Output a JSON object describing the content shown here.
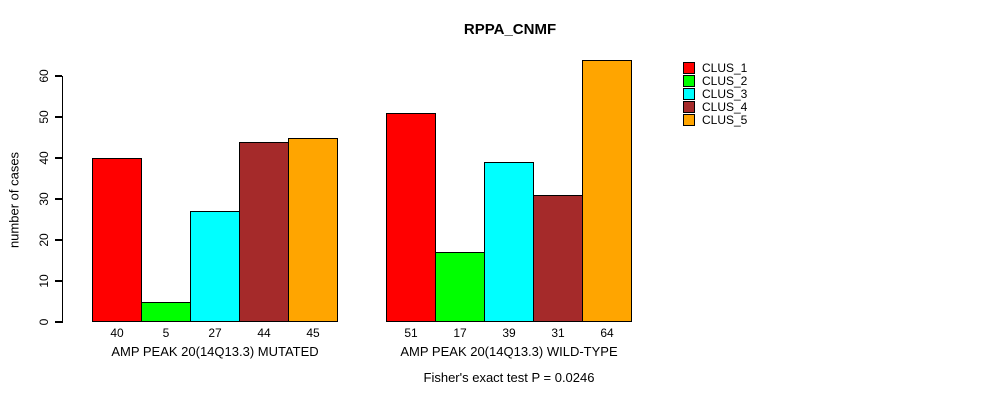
{
  "chart_data": {
    "type": "bar",
    "title": "RPPA_CNMF",
    "ylabel": "number of cases",
    "xlabel": "",
    "ylim": [
      0,
      60
    ],
    "yticks": [
      0,
      10,
      20,
      30,
      40,
      50,
      60
    ],
    "grid": false,
    "bar_value_labels": true,
    "categories": [
      "AMP PEAK 20(14Q13.3) MUTATED",
      "AMP PEAK 20(14Q13.3) WILD-TYPE"
    ],
    "series": [
      {
        "name": "CLUS_1",
        "color": "#FF0000",
        "values": [
          40,
          51
        ]
      },
      {
        "name": "CLUS_2",
        "color": "#00FF00",
        "values": [
          5,
          17
        ]
      },
      {
        "name": "CLUS_3",
        "color": "#00FFFF",
        "values": [
          27,
          39
        ]
      },
      {
        "name": "CLUS_4",
        "color": "#A52A2A",
        "values": [
          44,
          31
        ]
      },
      {
        "name": "CLUS_5",
        "color": "#FFA500",
        "values": [
          45,
          64
        ]
      }
    ],
    "legend": {
      "position": "right",
      "items": [
        "CLUS_1",
        "CLUS_2",
        "CLUS_3",
        "CLUS_4",
        "CLUS_5"
      ]
    },
    "annotation": "Fisher's exact test P = 0.0246",
    "text_color": "#000000",
    "background_color": "#FFFFFF"
  }
}
